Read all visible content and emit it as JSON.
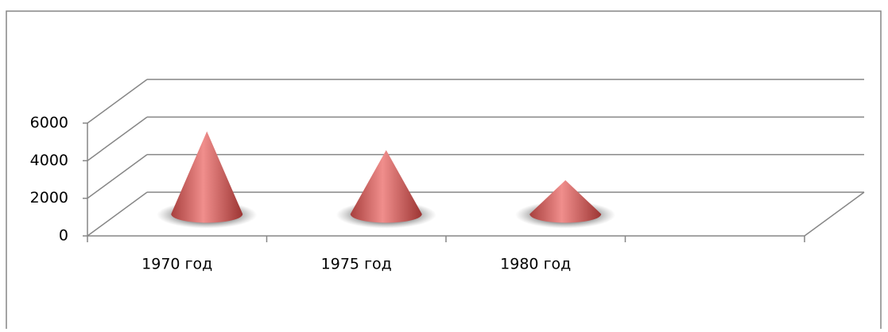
{
  "chart_data": {
    "type": "cone",
    "categories": [
      "1970 год",
      "1975 год",
      "1980 год",
      null
    ],
    "values": [
      4400,
      3400,
      1800,
      null
    ],
    "color": "#c0504d",
    "ylim": [
      0,
      6000
    ],
    "yticks": [
      0,
      2000,
      4000,
      6000
    ],
    "grid": true
  }
}
